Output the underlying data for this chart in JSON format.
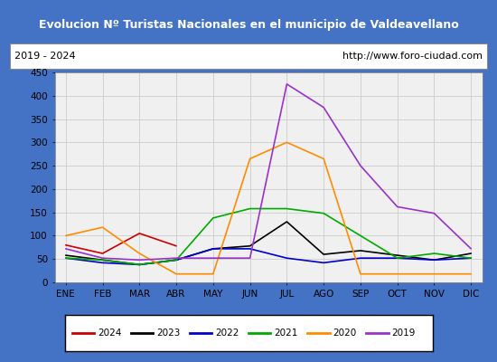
{
  "title": "Evolucion Nº Turistas Nacionales en el municipio de Valdeavellano",
  "subtitle_left": "2019 - 2024",
  "subtitle_right": "http://www.foro-ciudad.com",
  "title_bg": "#4472c4",
  "title_color": "white",
  "months": [
    "ENE",
    "FEB",
    "MAR",
    "ABR",
    "MAY",
    "JUN",
    "JUL",
    "AGO",
    "SEP",
    "OCT",
    "NOV",
    "DIC"
  ],
  "ylim": [
    0,
    450
  ],
  "yticks": [
    0,
    50,
    100,
    150,
    200,
    250,
    300,
    350,
    400,
    450
  ],
  "series": {
    "2024": {
      "color": "#cc0000",
      "data": [
        80,
        62,
        105,
        78,
        null,
        null,
        null,
        null,
        null,
        null,
        null,
        null
      ]
    },
    "2023": {
      "color": "#000000",
      "data": [
        58,
        48,
        38,
        48,
        72,
        78,
        130,
        60,
        68,
        58,
        48,
        62
      ]
    },
    "2022": {
      "color": "#0000cc",
      "data": [
        52,
        42,
        38,
        48,
        72,
        72,
        52,
        42,
        52,
        52,
        48,
        52
      ]
    },
    "2021": {
      "color": "#00aa00",
      "data": [
        52,
        48,
        38,
        48,
        138,
        158,
        158,
        148,
        100,
        52,
        62,
        52
      ]
    },
    "2020": {
      "color": "#ff8c00",
      "data": [
        100,
        118,
        62,
        18,
        18,
        265,
        300,
        265,
        18,
        18,
        18,
        18
      ]
    },
    "2019": {
      "color": "#9932cc",
      "data": [
        72,
        52,
        48,
        52,
        52,
        52,
        425,
        375,
        250,
        162,
        148,
        72
      ]
    }
  },
  "legend_order": [
    "2024",
    "2023",
    "2022",
    "2021",
    "2020",
    "2019"
  ],
  "grid_color": "#cccccc",
  "bg_color": "#e8e8e8",
  "plot_bg": "#f0f0f0",
  "border_color": "#4472c4"
}
